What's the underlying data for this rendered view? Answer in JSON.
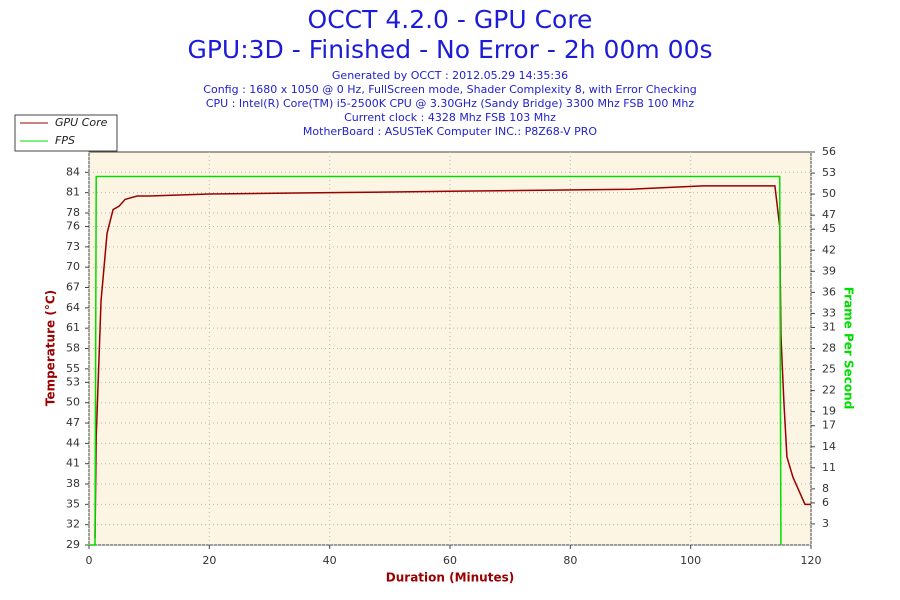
{
  "chart_data": {
    "type": "line",
    "title": "OCCT 4.2.0 - GPU Core",
    "subtitle": "GPU:3D - Finished - No Error - 2h 00m 00s",
    "info_lines": [
      "Generated by OCCT : 2012.05.29 14:35:36",
      "Config : 1680 x 1050 @ 0 Hz, FullScreen mode, Shader Complexity 8, with Error Checking",
      "CPU : Intel(R) Core(TM) i5-2500K CPU @ 3.30GHz (Sandy Bridge) 3300 Mhz FSB 100 Mhz",
      "Current clock : 4328 Mhz FSB 103 Mhz",
      "MotherBoard : ASUSTeK Computer INC.: P8Z68-V PRO"
    ],
    "x_label": "Duration (Minutes)",
    "y_label": "Temperature (°C)",
    "y2_label": "Frame Per Second",
    "x": [
      0,
      1,
      1.2,
      2,
      3,
      4,
      5,
      6,
      8,
      10,
      20,
      40,
      60,
      90,
      102,
      114,
      114.8,
      115,
      115.5,
      116,
      117,
      118,
      119,
      120
    ],
    "series": [
      {
        "name": "GPU Core",
        "color": "#990000",
        "values": [
          null,
          30,
          45,
          65,
          75,
          78.5,
          79,
          80,
          80.5,
          80.5,
          80.8,
          81,
          81.2,
          81.5,
          82,
          82,
          76,
          60,
          50,
          42,
          39,
          37,
          35,
          35
        ]
      },
      {
        "name": "FPS",
        "color": "#00dd00",
        "axis": "y2",
        "values": [
          0,
          0,
          52.5,
          52.5,
          52.5,
          52.5,
          52.5,
          52.5,
          52.5,
          52.5,
          52.5,
          52.5,
          52.5,
          52.5,
          52.5,
          52.5,
          52.5,
          0,
          null,
          null,
          null,
          null,
          null,
          null
        ]
      }
    ],
    "xlim": [
      0,
      120
    ],
    "xticks": [
      0,
      20,
      40,
      60,
      80,
      100,
      120
    ],
    "ylim": [
      29,
      87
    ],
    "yticks": [
      29,
      32,
      35,
      38,
      41,
      44,
      47,
      50,
      53,
      55,
      58,
      61,
      64,
      67,
      70,
      73,
      76,
      78,
      81,
      84
    ],
    "y2lim": [
      0,
      56
    ],
    "y2ticks": [
      3,
      6,
      8,
      11,
      14,
      17,
      19,
      22,
      25,
      28,
      31,
      33,
      36,
      39,
      42,
      45,
      47,
      50,
      53,
      56
    ],
    "grid": true,
    "legend": "top-left"
  }
}
